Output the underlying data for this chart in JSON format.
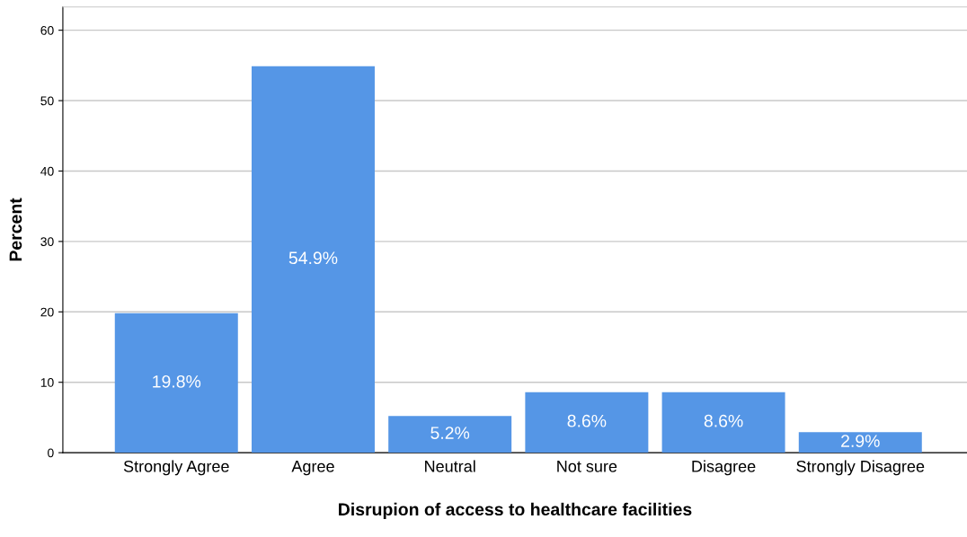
{
  "chart_data": {
    "type": "bar",
    "xlabel": "Disrupion of access to healthcare facilities",
    "ylabel": "Percent",
    "categories": [
      "Strongly Agree",
      "Agree",
      "Neutral",
      "Not sure",
      "Disagree",
      "Strongly Disagree"
    ],
    "values": [
      19.8,
      54.9,
      5.2,
      8.6,
      8.6,
      2.9
    ],
    "value_labels": [
      "19.8%",
      "54.9%",
      "5.2%",
      "8.6%",
      "8.6%",
      "2.9%"
    ],
    "color": "#5596e6",
    "ylim": [
      0,
      63.3
    ],
    "yticks": [
      0,
      10,
      20,
      30,
      40,
      50,
      60
    ],
    "grid": "y",
    "legend": false
  }
}
